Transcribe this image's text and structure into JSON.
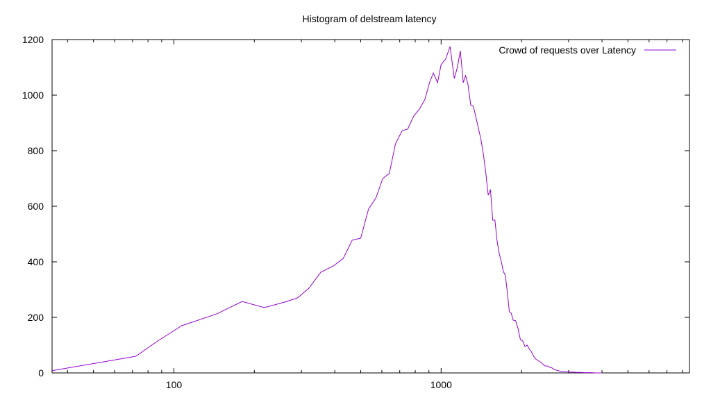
{
  "chart_data": {
    "type": "line",
    "title": "Histogram of delstream latency",
    "xlabel": "",
    "ylabel": "",
    "x_scale": "log",
    "xlim": [
      35,
      8500
    ],
    "ylim": [
      0,
      1200
    ],
    "x_ticks": [
      {
        "value": 100,
        "label": "100"
      },
      {
        "value": 1000,
        "label": "1000"
      }
    ],
    "y_ticks": [
      {
        "value": 0,
        "label": "0"
      },
      {
        "value": 200,
        "label": "200"
      },
      {
        "value": 400,
        "label": "400"
      },
      {
        "value": 600,
        "label": "600"
      },
      {
        "value": 800,
        "label": "800"
      },
      {
        "value": 1000,
        "label": "1000"
      },
      {
        "value": 1200,
        "label": "1200"
      }
    ],
    "grid": false,
    "legend_position": "top-right",
    "series": [
      {
        "name": "Crowd of requests over Latency",
        "color": "#9400d3",
        "x": [
          35,
          72,
          87,
          107,
          145,
          180,
          218,
          260,
          290,
          320,
          355,
          395,
          430,
          465,
          500,
          535,
          570,
          605,
          640,
          675,
          715,
          750,
          790,
          830,
          870,
          905,
          935,
          970,
          1000,
          1040,
          1080,
          1120,
          1150,
          1180,
          1210,
          1235,
          1260,
          1290,
          1320,
          1350,
          1380,
          1410,
          1440,
          1470,
          1500,
          1530,
          1560,
          1590,
          1620,
          1650,
          1680,
          1710,
          1740,
          1770,
          1800,
          1830,
          1860,
          1900,
          1940,
          1980,
          2020,
          2060,
          2100,
          2140,
          2180,
          2220,
          2260,
          2300,
          2350,
          2400,
          2450,
          2500,
          2550,
          2600,
          2650,
          2700,
          2750,
          2800,
          2850,
          2900,
          2950,
          3000,
          3100,
          3200,
          3300,
          3450,
          3650,
          3800,
          4000
        ],
        "y": [
          8,
          60,
          115,
          170,
          213,
          257,
          235,
          255,
          270,
          305,
          363,
          385,
          412,
          478,
          485,
          590,
          630,
          700,
          718,
          825,
          872,
          878,
          925,
          950,
          985,
          1045,
          1080,
          1045,
          1110,
          1130,
          1175,
          1060,
          1100,
          1160,
          1045,
          1070,
          1040,
          965,
          960,
          920,
          880,
          840,
          785,
          720,
          640,
          660,
          550,
          550,
          475,
          430,
          400,
          365,
          350,
          290,
          220,
          215,
          190,
          188,
          160,
          120,
          115,
          95,
          100,
          85,
          75,
          60,
          50,
          45,
          40,
          32,
          25,
          25,
          20,
          18,
          12,
          10,
          8,
          6,
          5,
          4,
          4,
          3,
          3,
          2,
          2,
          1,
          1,
          0,
          0
        ]
      }
    ]
  }
}
